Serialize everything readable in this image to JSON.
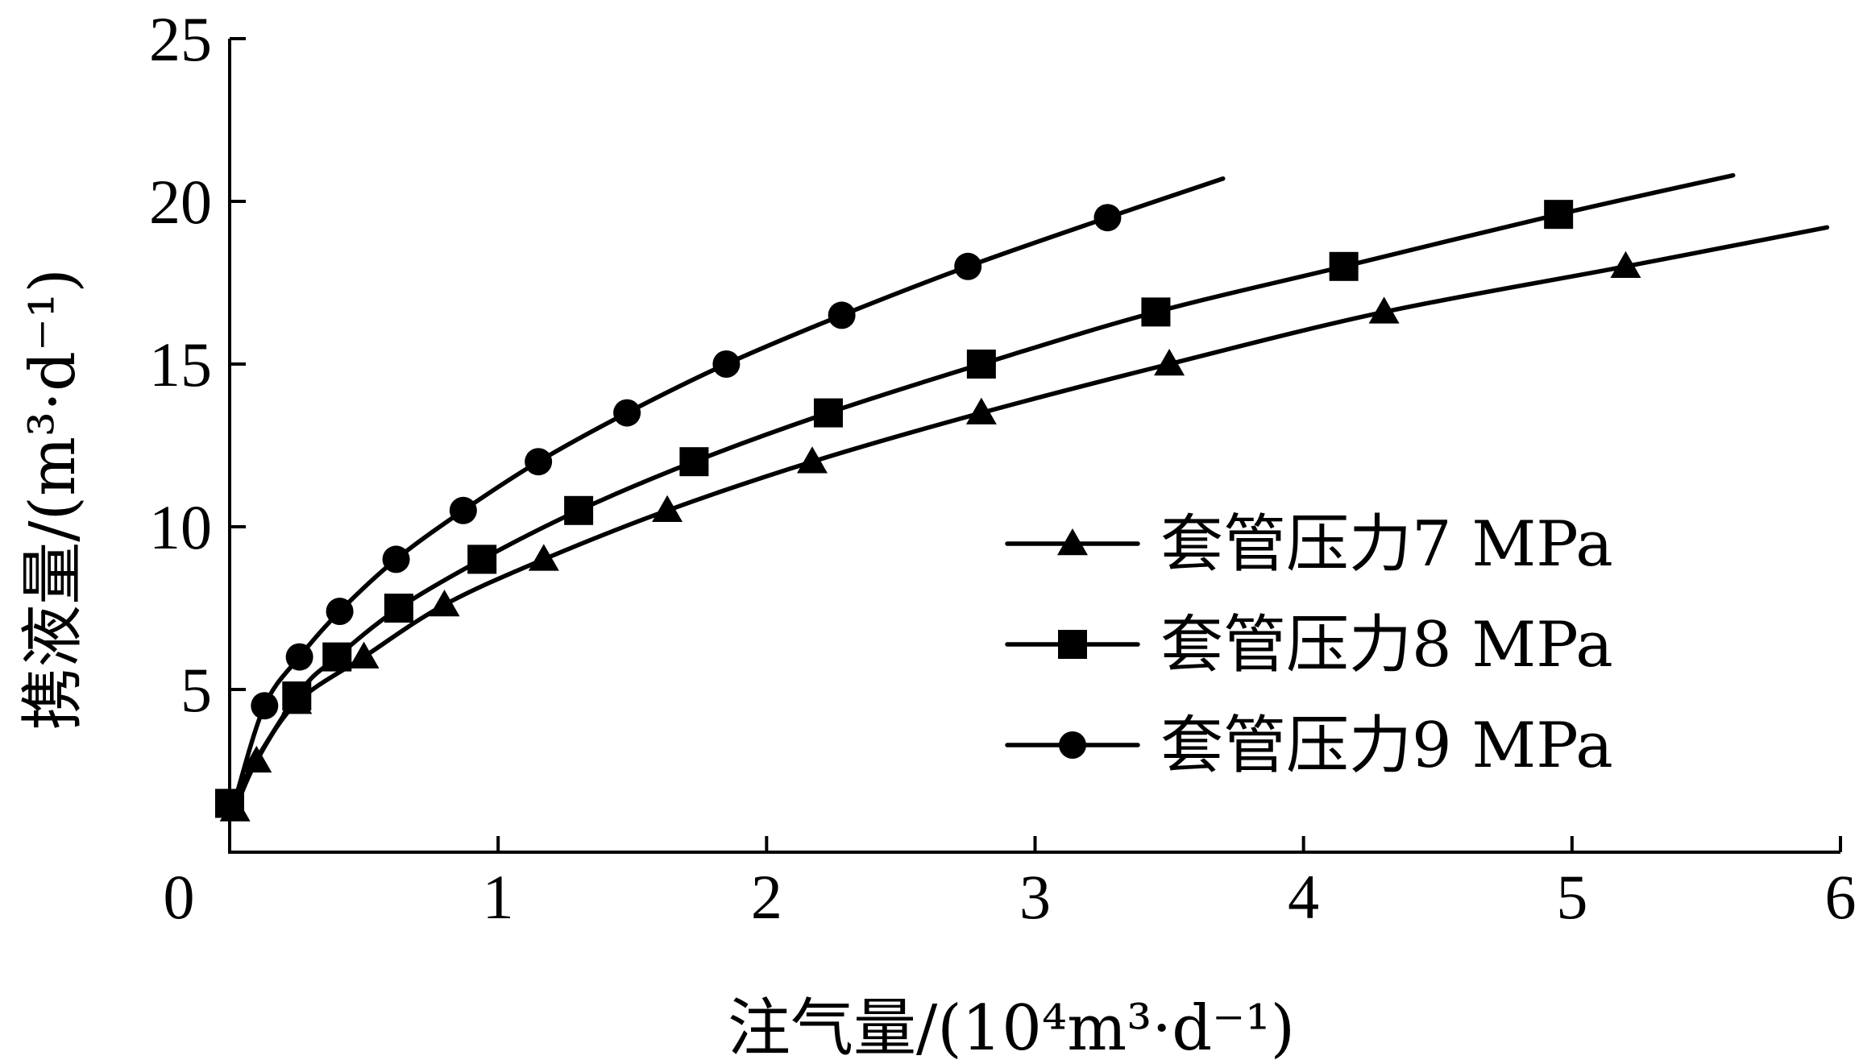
{
  "chart_data": {
    "type": "line",
    "xlabel": "注气量/(10⁴m³·d⁻¹)",
    "ylabel": "携液量/(m³·d⁻¹)",
    "xlim": [
      0,
      6
    ],
    "ylim": [
      0,
      25
    ],
    "x_ticks": [
      "0",
      "1",
      "2",
      "3",
      "4",
      "5",
      "6"
    ],
    "y_ticks": [
      "5",
      "10",
      "15",
      "20",
      "25"
    ],
    "grid": false,
    "legend": "center-right",
    "series": [
      {
        "name": "套管压力7 MPa",
        "marker": "triangle",
        "curve": [
          [
            0.02,
            1.3
          ],
          [
            0.1,
            2.8
          ],
          [
            0.25,
            4.6
          ],
          [
            0.5,
            6.0
          ],
          [
            0.8,
            7.6
          ],
          [
            1.17,
            9.0
          ],
          [
            1.63,
            10.5
          ],
          [
            2.17,
            12.0
          ],
          [
            2.8,
            13.5
          ],
          [
            3.5,
            15.0
          ],
          [
            4.3,
            16.6
          ],
          [
            5.2,
            18.0
          ],
          [
            5.95,
            19.2
          ]
        ],
        "points": [
          [
            0.02,
            1.3
          ],
          [
            0.1,
            2.8
          ],
          [
            0.25,
            4.6
          ],
          [
            0.5,
            6.0
          ],
          [
            0.8,
            7.6
          ],
          [
            1.17,
            9.0
          ],
          [
            1.63,
            10.5
          ],
          [
            2.17,
            12.0
          ],
          [
            2.8,
            13.5
          ],
          [
            3.5,
            15.0
          ],
          [
            4.3,
            16.6
          ],
          [
            5.2,
            18.0
          ]
        ]
      },
      {
        "name": "套管压力8 MPa",
        "marker": "square",
        "curve": [
          [
            0.0,
            1.5
          ],
          [
            0.25,
            4.8
          ],
          [
            0.4,
            6.0
          ],
          [
            0.63,
            7.5
          ],
          [
            0.94,
            9.0
          ],
          [
            1.3,
            10.5
          ],
          [
            1.73,
            12.0
          ],
          [
            2.23,
            13.5
          ],
          [
            2.8,
            15.0
          ],
          [
            3.45,
            16.6
          ],
          [
            4.15,
            18.0
          ],
          [
            4.95,
            19.6
          ],
          [
            5.6,
            20.8
          ]
        ],
        "points": [
          [
            0.0,
            1.5
          ],
          [
            0.25,
            4.8
          ],
          [
            0.4,
            6.0
          ],
          [
            0.63,
            7.5
          ],
          [
            0.94,
            9.0
          ],
          [
            1.3,
            10.5
          ],
          [
            1.73,
            12.0
          ],
          [
            2.23,
            13.5
          ],
          [
            2.8,
            15.0
          ],
          [
            3.45,
            16.6
          ],
          [
            4.15,
            18.0
          ],
          [
            4.95,
            19.6
          ]
        ]
      },
      {
        "name": "套管压力9 MPa",
        "marker": "circle",
        "curve": [
          [
            0.02,
            1.6
          ],
          [
            0.13,
            4.5
          ],
          [
            0.26,
            6.0
          ],
          [
            0.41,
            7.4
          ],
          [
            0.62,
            9.0
          ],
          [
            0.87,
            10.5
          ],
          [
            1.15,
            12.0
          ],
          [
            1.48,
            13.5
          ],
          [
            1.85,
            15.0
          ],
          [
            2.28,
            16.5
          ],
          [
            2.75,
            18.0
          ],
          [
            3.27,
            19.5
          ],
          [
            3.7,
            20.7
          ]
        ],
        "points": [
          [
            0.13,
            4.5
          ],
          [
            0.26,
            6.0
          ],
          [
            0.41,
            7.4
          ],
          [
            0.62,
            9.0
          ],
          [
            0.87,
            10.5
          ],
          [
            1.15,
            12.0
          ],
          [
            1.48,
            13.5
          ],
          [
            1.85,
            15.0
          ],
          [
            2.28,
            16.5
          ],
          [
            2.75,
            18.0
          ],
          [
            3.27,
            19.5
          ]
        ]
      }
    ]
  }
}
